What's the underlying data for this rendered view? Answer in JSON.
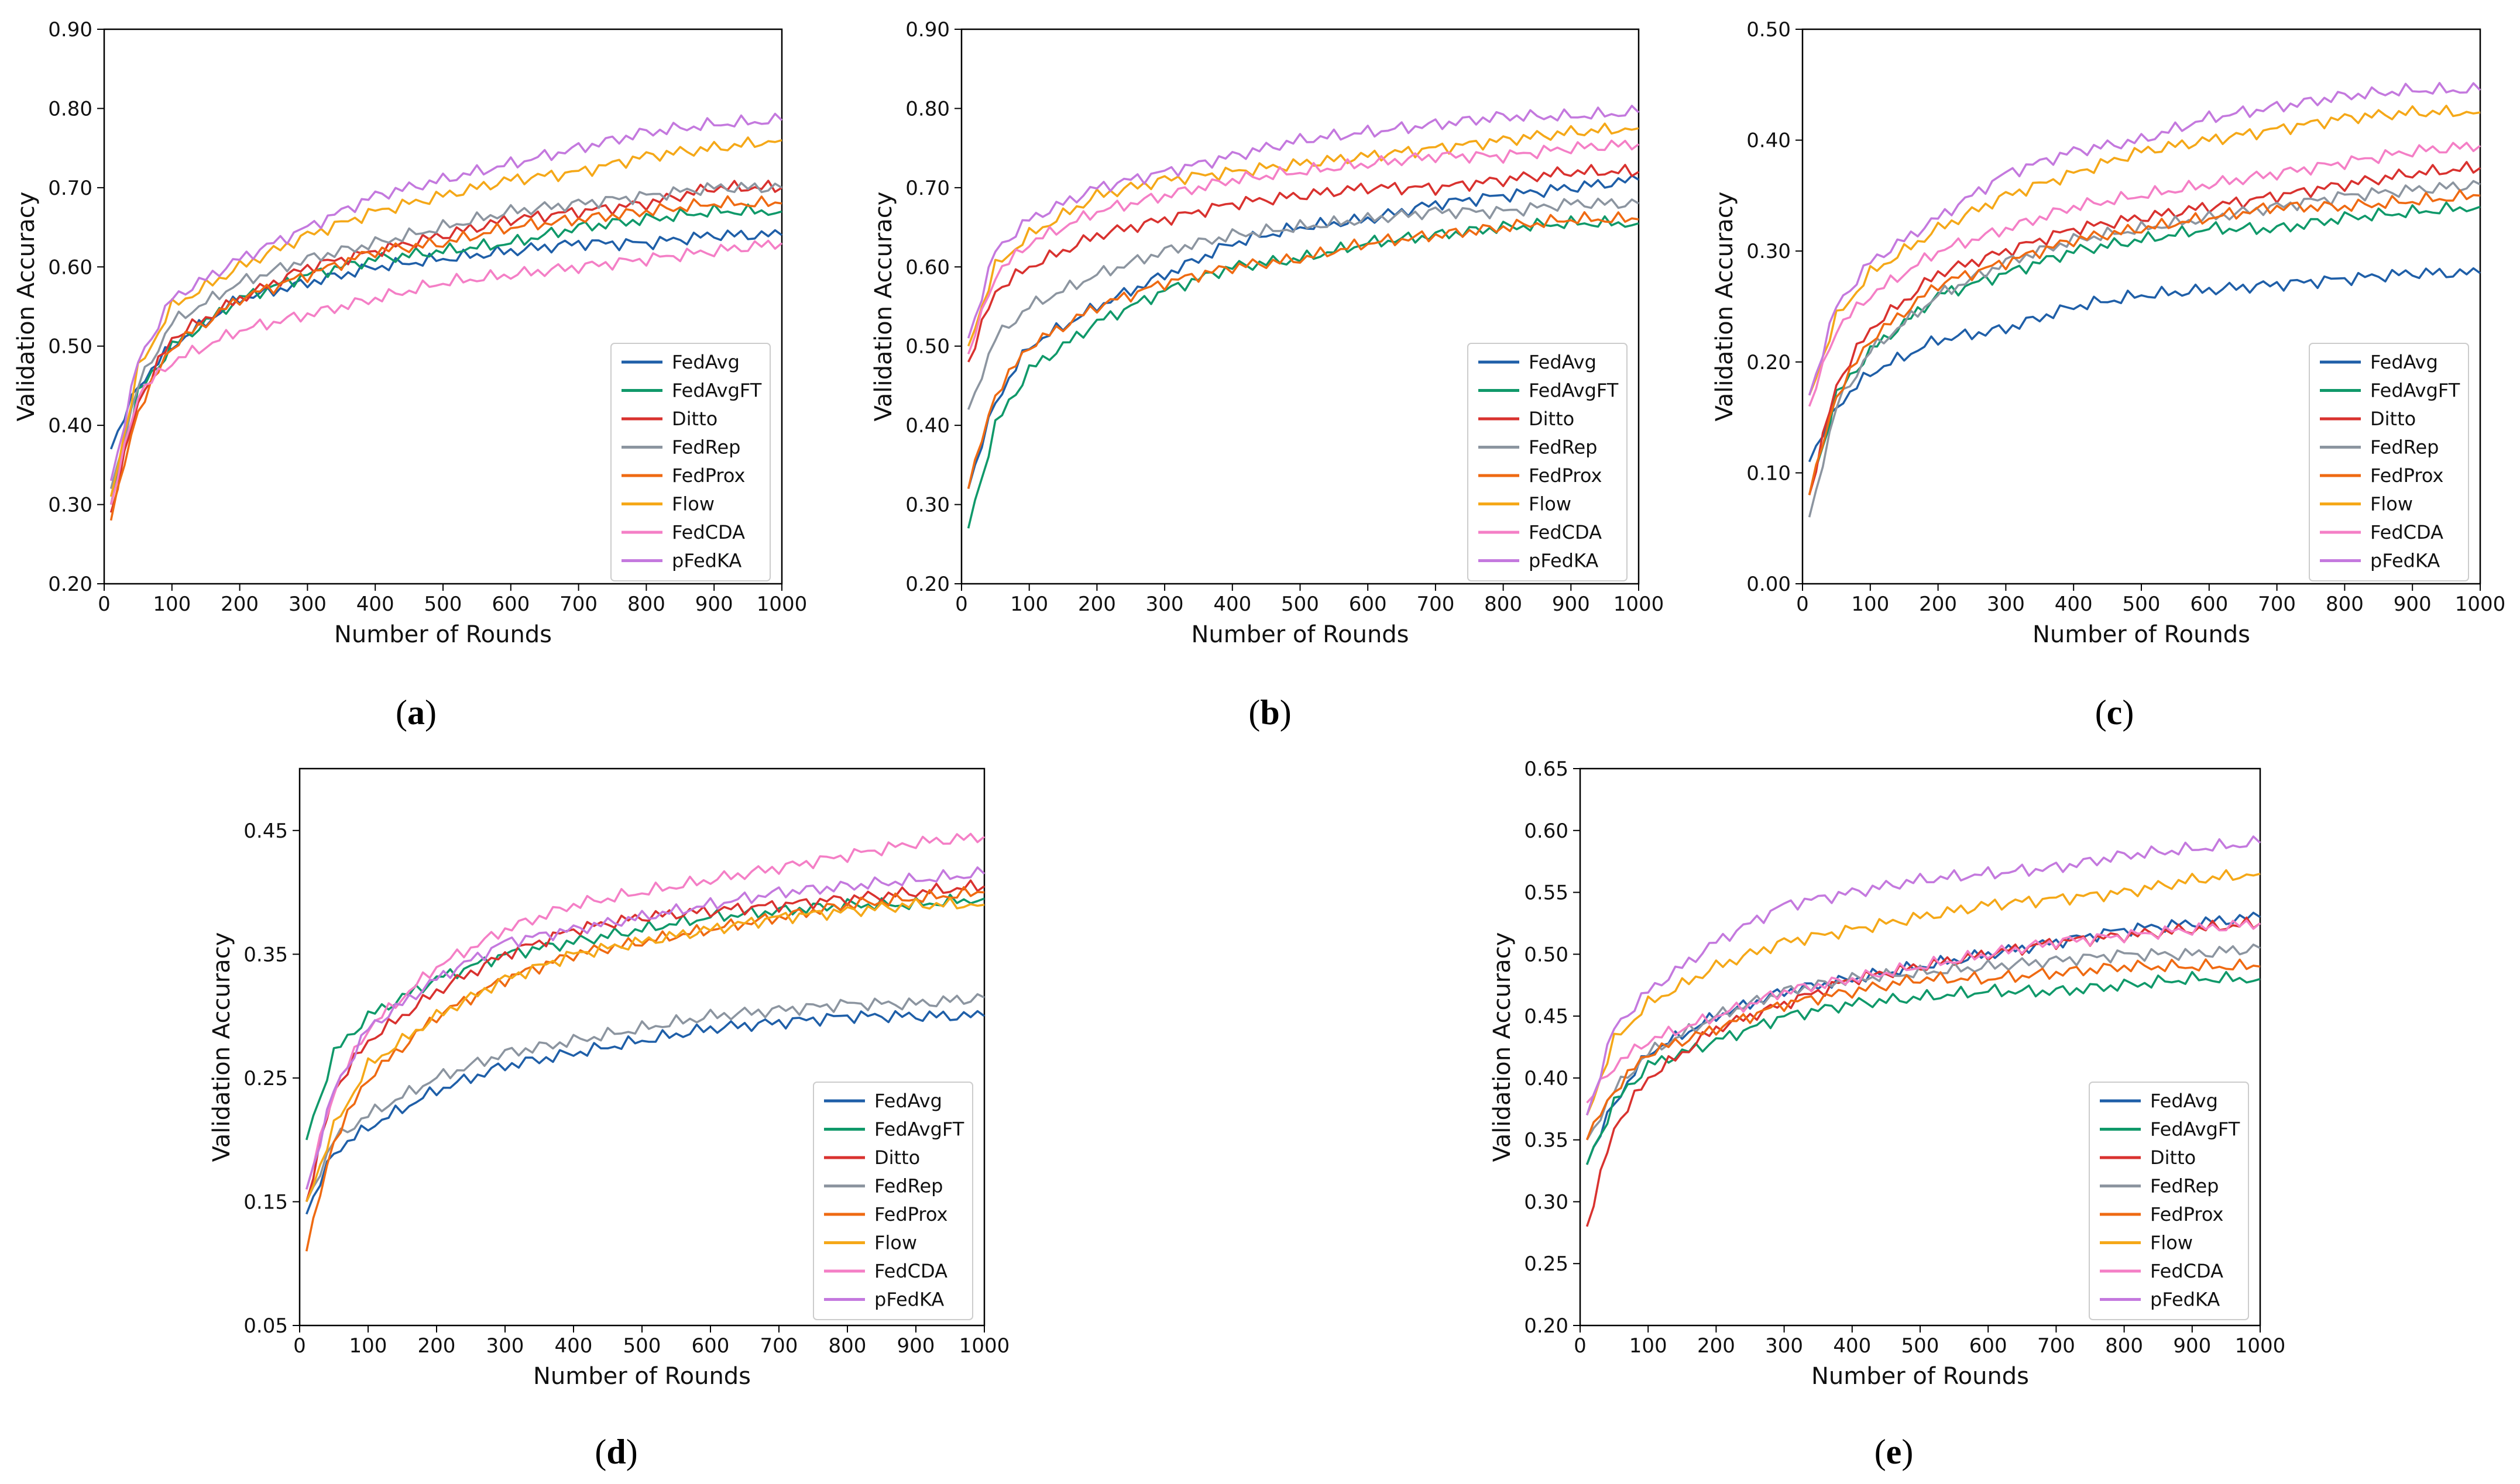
{
  "colors": {
    "FedAvg": "#1f5fa8",
    "FedAvgFT": "#10996a",
    "Ditto": "#d9322f",
    "FedRep": "#8c95a0",
    "FedProx": "#ef6a12",
    "Flow": "#f5a818",
    "FedCDA": "#f47fc6",
    "pFedKA": "#c479de"
  },
  "chart_data": [
    {
      "id": "a",
      "type": "line",
      "panel_label": {
        "open": "(",
        "letter": "a",
        "close": ")"
      },
      "xlabel": "Number of Rounds",
      "ylabel": "Validation Accuracy",
      "xlim": [
        0,
        1000
      ],
      "ylim": [
        0.2,
        0.9
      ],
      "xticks": [
        "0",
        "100",
        "200",
        "300",
        "400",
        "500",
        "600",
        "700",
        "800",
        "900",
        "1000"
      ],
      "yticks": [
        "0.20",
        "0.30",
        "0.40",
        "0.50",
        "0.60",
        "0.70",
        "0.80",
        "0.90"
      ],
      "legend_position": "lower-right",
      "x": [
        10,
        50,
        100,
        200,
        300,
        400,
        500,
        600,
        700,
        800,
        900,
        1000
      ],
      "series": [
        {
          "name": "FedAvg",
          "values": [
            0.37,
            0.45,
            0.5,
            0.56,
            0.58,
            0.6,
            0.61,
            0.62,
            0.63,
            0.63,
            0.64,
            0.64
          ]
        },
        {
          "name": "FedAvgFT",
          "values": [
            0.3,
            0.44,
            0.5,
            0.56,
            0.59,
            0.61,
            0.62,
            0.63,
            0.65,
            0.66,
            0.67,
            0.67
          ]
        },
        {
          "name": "Ditto",
          "values": [
            0.29,
            0.43,
            0.51,
            0.56,
            0.6,
            0.62,
            0.64,
            0.66,
            0.67,
            0.68,
            0.7,
            0.7
          ]
        },
        {
          "name": "FedRep",
          "values": [
            0.32,
            0.45,
            0.53,
            0.58,
            0.61,
            0.63,
            0.65,
            0.67,
            0.68,
            0.69,
            0.7,
            0.7
          ]
        },
        {
          "name": "FedProx",
          "values": [
            0.28,
            0.42,
            0.5,
            0.56,
            0.59,
            0.62,
            0.63,
            0.65,
            0.66,
            0.67,
            0.68,
            0.68
          ]
        },
        {
          "name": "Flow",
          "values": [
            0.31,
            0.47,
            0.55,
            0.6,
            0.64,
            0.67,
            0.69,
            0.71,
            0.72,
            0.74,
            0.75,
            0.76
          ]
        },
        {
          "name": "FedCDA",
          "values": [
            0.3,
            0.44,
            0.48,
            0.52,
            0.54,
            0.56,
            0.58,
            0.59,
            0.6,
            0.61,
            0.62,
            0.63
          ]
        },
        {
          "name": "pFedKA",
          "values": [
            0.33,
            0.48,
            0.56,
            0.61,
            0.65,
            0.69,
            0.71,
            0.73,
            0.75,
            0.77,
            0.78,
            0.785
          ]
        }
      ]
    },
    {
      "id": "b",
      "type": "line",
      "panel_label": {
        "open": "(",
        "letter": "b",
        "close": ")"
      },
      "xlabel": "Number of Rounds",
      "ylabel": "Validation Accuracy",
      "xlim": [
        0,
        1000
      ],
      "ylim": [
        0.2,
        0.9
      ],
      "xticks": [
        "0",
        "100",
        "200",
        "300",
        "400",
        "500",
        "600",
        "700",
        "800",
        "900",
        "1000"
      ],
      "yticks": [
        "0.20",
        "0.30",
        "0.40",
        "0.50",
        "0.60",
        "0.70",
        "0.80",
        "0.90"
      ],
      "legend_position": "lower-right",
      "x": [
        10,
        50,
        100,
        200,
        300,
        400,
        500,
        600,
        700,
        800,
        900,
        1000
      ],
      "series": [
        {
          "name": "FedAvg",
          "values": [
            0.32,
            0.43,
            0.5,
            0.55,
            0.59,
            0.63,
            0.65,
            0.66,
            0.68,
            0.69,
            0.7,
            0.71
          ]
        },
        {
          "name": "FedAvgFT",
          "values": [
            0.27,
            0.4,
            0.47,
            0.53,
            0.57,
            0.6,
            0.61,
            0.63,
            0.64,
            0.65,
            0.655,
            0.655
          ]
        },
        {
          "name": "Ditto",
          "values": [
            0.48,
            0.57,
            0.6,
            0.64,
            0.66,
            0.68,
            0.69,
            0.7,
            0.7,
            0.71,
            0.72,
            0.72
          ]
        },
        {
          "name": "FedRep",
          "values": [
            0.42,
            0.51,
            0.55,
            0.59,
            0.62,
            0.64,
            0.65,
            0.66,
            0.67,
            0.67,
            0.68,
            0.68
          ]
        },
        {
          "name": "FedProx",
          "values": [
            0.32,
            0.44,
            0.5,
            0.55,
            0.58,
            0.6,
            0.61,
            0.63,
            0.64,
            0.65,
            0.66,
            0.66
          ]
        },
        {
          "name": "Flow",
          "values": [
            0.5,
            0.6,
            0.64,
            0.69,
            0.71,
            0.72,
            0.73,
            0.74,
            0.75,
            0.76,
            0.77,
            0.775
          ]
        },
        {
          "name": "FedCDA",
          "values": [
            0.49,
            0.59,
            0.63,
            0.67,
            0.69,
            0.71,
            0.72,
            0.73,
            0.74,
            0.74,
            0.75,
            0.755
          ]
        },
        {
          "name": "pFedKA",
          "values": [
            0.51,
            0.62,
            0.66,
            0.7,
            0.72,
            0.74,
            0.76,
            0.77,
            0.78,
            0.79,
            0.79,
            0.795
          ]
        }
      ]
    },
    {
      "id": "c",
      "type": "line",
      "panel_label": {
        "open": "(",
        "letter": "c",
        "close": ")"
      },
      "xlabel": "Number of Rounds",
      "ylabel": "Validation Accuracy",
      "xlim": [
        0,
        1000
      ],
      "ylim": [
        0.0,
        0.5
      ],
      "xticks": [
        "0",
        "100",
        "200",
        "300",
        "400",
        "500",
        "600",
        "700",
        "800",
        "900",
        "1000"
      ],
      "yticks": [
        "0.00",
        "0.10",
        "0.20",
        "0.30",
        "0.40",
        "0.50"
      ],
      "legend_position": "lower-right",
      "x": [
        10,
        50,
        100,
        200,
        300,
        400,
        500,
        600,
        700,
        800,
        900,
        1000
      ],
      "series": [
        {
          "name": "FedAvg",
          "values": [
            0.11,
            0.16,
            0.19,
            0.22,
            0.23,
            0.25,
            0.26,
            0.265,
            0.27,
            0.275,
            0.28,
            0.28
          ]
        },
        {
          "name": "FedAvgFT",
          "values": [
            0.08,
            0.17,
            0.21,
            0.26,
            0.28,
            0.3,
            0.31,
            0.32,
            0.32,
            0.33,
            0.335,
            0.34
          ]
        },
        {
          "name": "Ditto",
          "values": [
            0.08,
            0.18,
            0.23,
            0.28,
            0.3,
            0.32,
            0.33,
            0.34,
            0.35,
            0.36,
            0.37,
            0.375
          ]
        },
        {
          "name": "FedRep",
          "values": [
            0.06,
            0.16,
            0.21,
            0.26,
            0.29,
            0.31,
            0.32,
            0.33,
            0.34,
            0.35,
            0.355,
            0.36
          ]
        },
        {
          "name": "FedProx",
          "values": [
            0.08,
            0.17,
            0.22,
            0.27,
            0.29,
            0.31,
            0.32,
            0.33,
            0.34,
            0.34,
            0.345,
            0.35
          ]
        },
        {
          "name": "Flow",
          "values": [
            0.17,
            0.24,
            0.28,
            0.32,
            0.35,
            0.37,
            0.39,
            0.4,
            0.41,
            0.42,
            0.425,
            0.425
          ]
        },
        {
          "name": "FedCDA",
          "values": [
            0.16,
            0.23,
            0.26,
            0.3,
            0.32,
            0.34,
            0.35,
            0.36,
            0.37,
            0.38,
            0.39,
            0.395
          ]
        },
        {
          "name": "pFedKA",
          "values": [
            0.17,
            0.25,
            0.29,
            0.33,
            0.37,
            0.39,
            0.4,
            0.42,
            0.43,
            0.44,
            0.445,
            0.445
          ]
        }
      ]
    },
    {
      "id": "d",
      "type": "line",
      "panel_label": {
        "open": "(",
        "letter": "d",
        "close": ")"
      },
      "xlabel": "Number of Rounds",
      "ylabel": "Validation Accuracy",
      "xlim": [
        0,
        1000
      ],
      "ylim": [
        0.05,
        0.5
      ],
      "xticks": [
        "0",
        "100",
        "200",
        "300",
        "400",
        "500",
        "600",
        "700",
        "800",
        "900",
        "1000"
      ],
      "ytick_values": [
        0.05,
        0.15,
        0.25,
        0.35,
        0.45
      ],
      "yticks": [
        "0.05",
        "0.15",
        "0.25",
        "0.35",
        "0.45"
      ],
      "legend_position": "lower-right",
      "x": [
        10,
        50,
        100,
        200,
        300,
        400,
        500,
        600,
        700,
        800,
        900,
        1000
      ],
      "series": [
        {
          "name": "FedAvg",
          "values": [
            0.14,
            0.19,
            0.21,
            0.24,
            0.26,
            0.27,
            0.28,
            0.29,
            0.295,
            0.3,
            0.3,
            0.3
          ]
        },
        {
          "name": "FedAvgFT",
          "values": [
            0.2,
            0.27,
            0.3,
            0.33,
            0.35,
            0.36,
            0.37,
            0.38,
            0.385,
            0.39,
            0.39,
            0.395
          ]
        },
        {
          "name": "Ditto",
          "values": [
            0.15,
            0.24,
            0.28,
            0.32,
            0.35,
            0.37,
            0.38,
            0.385,
            0.39,
            0.395,
            0.4,
            0.405
          ]
        },
        {
          "name": "FedRep",
          "values": [
            0.15,
            0.2,
            0.22,
            0.25,
            0.27,
            0.28,
            0.29,
            0.3,
            0.305,
            0.31,
            0.31,
            0.315
          ]
        },
        {
          "name": "FedProx",
          "values": [
            0.11,
            0.2,
            0.25,
            0.3,
            0.33,
            0.35,
            0.36,
            0.37,
            0.38,
            0.39,
            0.395,
            0.4
          ]
        },
        {
          "name": "Flow",
          "values": [
            0.15,
            0.21,
            0.26,
            0.3,
            0.33,
            0.35,
            0.36,
            0.37,
            0.38,
            0.385,
            0.39,
            0.39
          ]
        },
        {
          "name": "FedCDA",
          "values": [
            0.16,
            0.24,
            0.29,
            0.34,
            0.37,
            0.39,
            0.4,
            0.41,
            0.42,
            0.43,
            0.44,
            0.445
          ]
        },
        {
          "name": "pFedKA",
          "values": [
            0.16,
            0.24,
            0.29,
            0.33,
            0.36,
            0.37,
            0.38,
            0.39,
            0.4,
            0.405,
            0.41,
            0.415
          ]
        }
      ]
    },
    {
      "id": "e",
      "type": "line",
      "panel_label": {
        "open": "(",
        "letter": "e",
        "close": ")"
      },
      "xlabel": "Number of Rounds",
      "ylabel": "Validation Accuracy",
      "xlim": [
        0,
        1000
      ],
      "ylim": [
        0.2,
        0.65
      ],
      "xticks": [
        "0",
        "100",
        "200",
        "300",
        "400",
        "500",
        "600",
        "700",
        "800",
        "900",
        "1000"
      ],
      "yticks": [
        "0.20",
        "0.25",
        "0.30",
        "0.35",
        "0.40",
        "0.45",
        "0.50",
        "0.55",
        "0.60",
        "0.65"
      ],
      "legend_position": "lower-right",
      "x": [
        10,
        50,
        100,
        200,
        300,
        400,
        500,
        600,
        700,
        800,
        900,
        1000
      ],
      "series": [
        {
          "name": "FedAvg",
          "values": [
            0.33,
            0.38,
            0.42,
            0.45,
            0.47,
            0.48,
            0.49,
            0.5,
            0.51,
            0.52,
            0.525,
            0.53
          ]
        },
        {
          "name": "FedAvgFT",
          "values": [
            0.33,
            0.38,
            0.41,
            0.43,
            0.45,
            0.46,
            0.465,
            0.47,
            0.47,
            0.475,
            0.48,
            0.48
          ]
        },
        {
          "name": "Ditto",
          "values": [
            0.28,
            0.36,
            0.4,
            0.44,
            0.46,
            0.48,
            0.49,
            0.5,
            0.51,
            0.515,
            0.52,
            0.525
          ]
        },
        {
          "name": "FedRep",
          "values": [
            0.35,
            0.39,
            0.42,
            0.45,
            0.47,
            0.48,
            0.485,
            0.49,
            0.495,
            0.5,
            0.5,
            0.505
          ]
        },
        {
          "name": "FedProx",
          "values": [
            0.35,
            0.39,
            0.42,
            0.44,
            0.46,
            0.47,
            0.48,
            0.48,
            0.485,
            0.49,
            0.49,
            0.49
          ]
        },
        {
          "name": "Flow",
          "values": [
            0.37,
            0.43,
            0.46,
            0.49,
            0.51,
            0.52,
            0.53,
            0.54,
            0.545,
            0.55,
            0.56,
            0.565
          ]
        },
        {
          "name": "FedCDA",
          "values": [
            0.38,
            0.41,
            0.43,
            0.45,
            0.47,
            0.48,
            0.49,
            0.5,
            0.51,
            0.515,
            0.52,
            0.525
          ]
        },
        {
          "name": "pFedKA",
          "values": [
            0.37,
            0.44,
            0.47,
            0.51,
            0.54,
            0.55,
            0.56,
            0.565,
            0.57,
            0.58,
            0.585,
            0.59
          ]
        }
      ]
    }
  ]
}
